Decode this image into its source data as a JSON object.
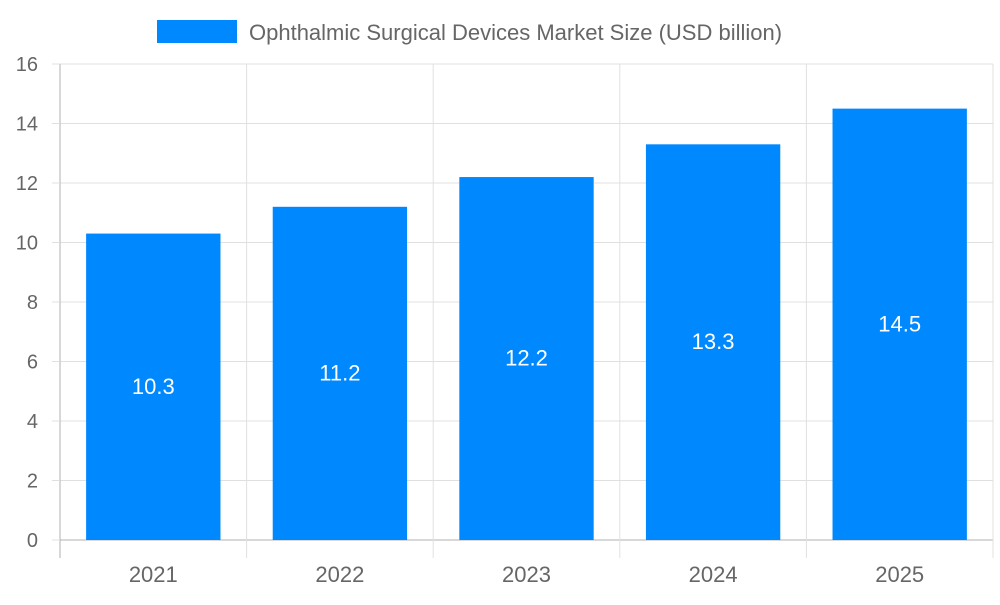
{
  "chart_data": {
    "type": "bar",
    "categories": [
      "2021",
      "2022",
      "2023",
      "2024",
      "2025"
    ],
    "series": [
      {
        "name": "Ophthalmic Surgical Devices Market Size (USD billion)",
        "values": [
          10.3,
          11.2,
          12.2,
          13.3,
          14.5
        ]
      }
    ],
    "data_labels": [
      "10.3",
      "11.2",
      "12.2",
      "13.3",
      "14.5"
    ],
    "yticks": [
      "0",
      "2",
      "4",
      "6",
      "8",
      "10",
      "12",
      "14",
      "16"
    ],
    "ylim": [
      0,
      16
    ],
    "grid": true,
    "legend": "top",
    "colors": {
      "bar": "#0088FF",
      "grid": "#E0E0E0",
      "axis": "#B0B0B0",
      "text": "#666666",
      "label": "#FFFFFF"
    }
  }
}
